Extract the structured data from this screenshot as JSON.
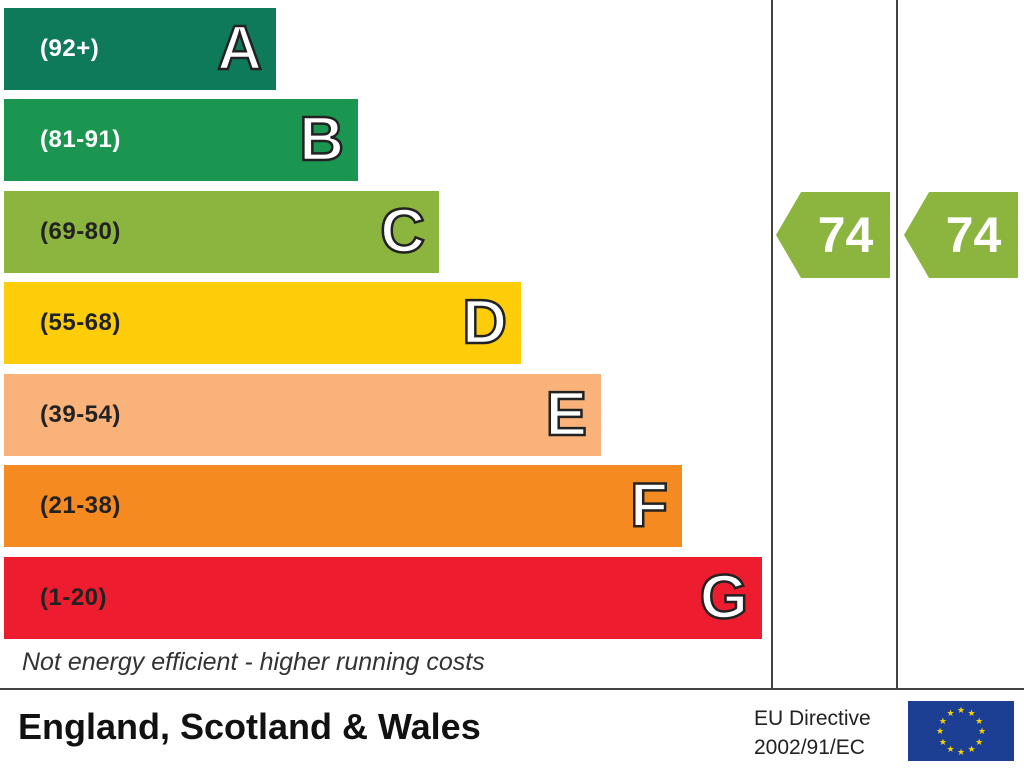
{
  "chart_data": {
    "type": "bar",
    "categories": [
      "A",
      "B",
      "C",
      "D",
      "E",
      "F",
      "G"
    ],
    "bands": [
      {
        "letter": "A",
        "range": "(92+)",
        "color": "#0e7a5a",
        "range_color": "#ffffff"
      },
      {
        "letter": "B",
        "range": "(81-91)",
        "color": "#1a9650",
        "range_color": "#ffffff"
      },
      {
        "letter": "C",
        "range": "(69-80)",
        "color": "#8cb53f",
        "range_color": "#222222"
      },
      {
        "letter": "D",
        "range": "(55-68)",
        "color": "#fdcd0a",
        "range_color": "#222222"
      },
      {
        "letter": "E",
        "range": "(39-54)",
        "color": "#f8b27a",
        "range_color": "#222222"
      },
      {
        "letter": "F",
        "range": "(21-38)",
        "color": "#f58b20",
        "range_color": "#222222"
      },
      {
        "letter": "G",
        "range": "(1-20)",
        "color": "#ed1c2e",
        "range_color": "#222222"
      }
    ],
    "current_rating": {
      "value": "74",
      "band": "C",
      "color": "#8cb53f"
    },
    "potential_rating": {
      "value": "74",
      "band": "C",
      "color": "#8cb53f"
    }
  },
  "footnote": "Not energy efficient - higher running costs",
  "region": "England, Scotland & Wales",
  "eu_directive": {
    "line1": "EU Directive",
    "line2": "2002/91/EC"
  },
  "eu_flag_color": "#1c3f94",
  "eu_star_color": "#f5d200"
}
